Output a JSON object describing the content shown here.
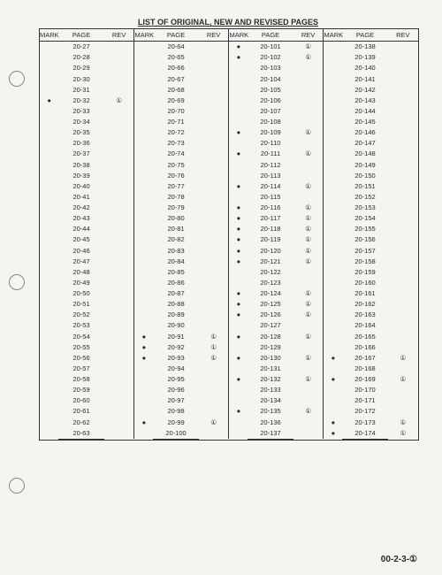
{
  "title": "LIST OF ORIGINAL, NEW AND REVISED PAGES",
  "footer": "00-2-3-①",
  "headers": {
    "mark": "MARK",
    "page": "PAGE",
    "rev": "REV"
  },
  "sections": [
    [
      {
        "m": "",
        "p": "20-27",
        "r": ""
      },
      {
        "m": "",
        "p": "20-28",
        "r": ""
      },
      {
        "m": "",
        "p": "20-29",
        "r": ""
      },
      {
        "m": "",
        "p": "20-30",
        "r": ""
      },
      {
        "m": "",
        "p": "20-31",
        "r": ""
      },
      {
        "m": "●",
        "p": "20-32",
        "r": "①"
      },
      {
        "m": "",
        "p": "20-33",
        "r": ""
      },
      {
        "m": "",
        "p": "20-34",
        "r": ""
      },
      {
        "m": "",
        "p": "20-35",
        "r": ""
      },
      {
        "m": "",
        "p": "20-36",
        "r": ""
      },
      {
        "m": "",
        "p": "20-37",
        "r": ""
      },
      {
        "m": "",
        "p": "20-38",
        "r": ""
      },
      {
        "m": "",
        "p": "20-39",
        "r": ""
      },
      {
        "m": "",
        "p": "20-40",
        "r": ""
      },
      {
        "m": "",
        "p": "20-41",
        "r": ""
      },
      {
        "m": "",
        "p": "20-42",
        "r": ""
      },
      {
        "m": "",
        "p": "20-43",
        "r": ""
      },
      {
        "m": "",
        "p": "20-44",
        "r": ""
      },
      {
        "m": "",
        "p": "20-45",
        "r": ""
      },
      {
        "m": "",
        "p": "20-46",
        "r": ""
      },
      {
        "m": "",
        "p": "20-47",
        "r": ""
      },
      {
        "m": "",
        "p": "20-48",
        "r": ""
      },
      {
        "m": "",
        "p": "20-49",
        "r": ""
      },
      {
        "m": "",
        "p": "20-50",
        "r": ""
      },
      {
        "m": "",
        "p": "20-51",
        "r": ""
      },
      {
        "m": "",
        "p": "20-52",
        "r": ""
      },
      {
        "m": "",
        "p": "20-53",
        "r": ""
      },
      {
        "m": "",
        "p": "20-54",
        "r": ""
      },
      {
        "m": "",
        "p": "20-55",
        "r": ""
      },
      {
        "m": "",
        "p": "20-56",
        "r": ""
      },
      {
        "m": "",
        "p": "20-57",
        "r": ""
      },
      {
        "m": "",
        "p": "20-58",
        "r": ""
      },
      {
        "m": "",
        "p": "20-59",
        "r": ""
      },
      {
        "m": "",
        "p": "20-60",
        "r": ""
      },
      {
        "m": "",
        "p": "20-61",
        "r": ""
      },
      {
        "m": "",
        "p": "20-62",
        "r": ""
      },
      {
        "m": "",
        "p": "20-63",
        "r": ""
      }
    ],
    [
      {
        "m": "",
        "p": "20-64",
        "r": ""
      },
      {
        "m": "",
        "p": "20-65",
        "r": ""
      },
      {
        "m": "",
        "p": "20-66",
        "r": ""
      },
      {
        "m": "",
        "p": "20-67",
        "r": ""
      },
      {
        "m": "",
        "p": "20-68",
        "r": ""
      },
      {
        "m": "",
        "p": "20-69",
        "r": ""
      },
      {
        "m": "",
        "p": "20-70",
        "r": ""
      },
      {
        "m": "",
        "p": "20-71",
        "r": ""
      },
      {
        "m": "",
        "p": "20-72",
        "r": ""
      },
      {
        "m": "",
        "p": "20-73",
        "r": ""
      },
      {
        "m": "",
        "p": "20-74",
        "r": ""
      },
      {
        "m": "",
        "p": "20-75",
        "r": ""
      },
      {
        "m": "",
        "p": "20-76",
        "r": ""
      },
      {
        "m": "",
        "p": "20-77",
        "r": ""
      },
      {
        "m": "",
        "p": "20-78",
        "r": ""
      },
      {
        "m": "",
        "p": "20-79",
        "r": ""
      },
      {
        "m": "",
        "p": "20-80",
        "r": ""
      },
      {
        "m": "",
        "p": "20-81",
        "r": ""
      },
      {
        "m": "",
        "p": "20-82",
        "r": ""
      },
      {
        "m": "",
        "p": "20-83",
        "r": ""
      },
      {
        "m": "",
        "p": "20-84",
        "r": ""
      },
      {
        "m": "",
        "p": "20-85",
        "r": ""
      },
      {
        "m": "",
        "p": "20-86",
        "r": ""
      },
      {
        "m": "",
        "p": "20-87",
        "r": ""
      },
      {
        "m": "",
        "p": "20-88",
        "r": ""
      },
      {
        "m": "",
        "p": "20-89",
        "r": ""
      },
      {
        "m": "",
        "p": "20-90",
        "r": ""
      },
      {
        "m": "●",
        "p": "20-91",
        "r": "①"
      },
      {
        "m": "●",
        "p": "20-92",
        "r": "①"
      },
      {
        "m": "●",
        "p": "20-93",
        "r": "①"
      },
      {
        "m": "",
        "p": "20-94",
        "r": ""
      },
      {
        "m": "",
        "p": "20-95",
        "r": ""
      },
      {
        "m": "",
        "p": "20-96",
        "r": ""
      },
      {
        "m": "",
        "p": "20-97",
        "r": ""
      },
      {
        "m": "",
        "p": "20-98",
        "r": ""
      },
      {
        "m": "●",
        "p": "20-99",
        "r": "①"
      },
      {
        "m": "",
        "p": "20-100",
        "r": ""
      }
    ],
    [
      {
        "m": "●",
        "p": "20-101",
        "r": "①"
      },
      {
        "m": "●",
        "p": "20-102",
        "r": "①"
      },
      {
        "m": "",
        "p": "20-103",
        "r": ""
      },
      {
        "m": "",
        "p": "20-104",
        "r": ""
      },
      {
        "m": "",
        "p": "20-105",
        "r": ""
      },
      {
        "m": "",
        "p": "20-106",
        "r": ""
      },
      {
        "m": "",
        "p": "20-107",
        "r": ""
      },
      {
        "m": "",
        "p": "20-108",
        "r": ""
      },
      {
        "m": "●",
        "p": "20-109",
        "r": "①"
      },
      {
        "m": "",
        "p": "20-110",
        "r": ""
      },
      {
        "m": "●",
        "p": "20-111",
        "r": "①"
      },
      {
        "m": "",
        "p": "20-112",
        "r": ""
      },
      {
        "m": "",
        "p": "20-113",
        "r": ""
      },
      {
        "m": "●",
        "p": "20-114",
        "r": "①"
      },
      {
        "m": "",
        "p": "20-115",
        "r": ""
      },
      {
        "m": "●",
        "p": "20-116",
        "r": "①"
      },
      {
        "m": "●",
        "p": "20-117",
        "r": "①"
      },
      {
        "m": "●",
        "p": "20-118",
        "r": "①"
      },
      {
        "m": "●",
        "p": "20-119",
        "r": "①"
      },
      {
        "m": "●",
        "p": "20-120",
        "r": "①"
      },
      {
        "m": "●",
        "p": "20-121",
        "r": "①"
      },
      {
        "m": "",
        "p": "20-122",
        "r": ""
      },
      {
        "m": "",
        "p": "20-123",
        "r": ""
      },
      {
        "m": "●",
        "p": "20-124",
        "r": "①"
      },
      {
        "m": "●",
        "p": "20-125",
        "r": "①"
      },
      {
        "m": "●",
        "p": "20-126",
        "r": "①"
      },
      {
        "m": "",
        "p": "20-127",
        "r": ""
      },
      {
        "m": "●",
        "p": "20-128",
        "r": "①"
      },
      {
        "m": "",
        "p": "20-129",
        "r": ""
      },
      {
        "m": "●",
        "p": "20-130",
        "r": "①"
      },
      {
        "m": "",
        "p": "20-131",
        "r": ""
      },
      {
        "m": "●",
        "p": "20-132",
        "r": "①"
      },
      {
        "m": "",
        "p": "20-133",
        "r": ""
      },
      {
        "m": "",
        "p": "20-134",
        "r": ""
      },
      {
        "m": "●",
        "p": "20-135",
        "r": "①"
      },
      {
        "m": "",
        "p": "20-136",
        "r": ""
      },
      {
        "m": "",
        "p": "20-137",
        "r": ""
      }
    ],
    [
      {
        "m": "",
        "p": "20-138",
        "r": ""
      },
      {
        "m": "",
        "p": "20-139",
        "r": ""
      },
      {
        "m": "",
        "p": "20-140",
        "r": ""
      },
      {
        "m": "",
        "p": "20-141",
        "r": ""
      },
      {
        "m": "",
        "p": "20-142",
        "r": ""
      },
      {
        "m": "",
        "p": "20-143",
        "r": ""
      },
      {
        "m": "",
        "p": "20-144",
        "r": ""
      },
      {
        "m": "",
        "p": "20-145",
        "r": ""
      },
      {
        "m": "",
        "p": "20-146",
        "r": ""
      },
      {
        "m": "",
        "p": "20-147",
        "r": ""
      },
      {
        "m": "",
        "p": "20-148",
        "r": ""
      },
      {
        "m": "",
        "p": "20-149",
        "r": ""
      },
      {
        "m": "",
        "p": "20-150",
        "r": ""
      },
      {
        "m": "",
        "p": "20-151",
        "r": ""
      },
      {
        "m": "",
        "p": "20-152",
        "r": ""
      },
      {
        "m": "",
        "p": "20-153",
        "r": ""
      },
      {
        "m": "",
        "p": "20-154",
        "r": ""
      },
      {
        "m": "",
        "p": "20-155",
        "r": ""
      },
      {
        "m": "",
        "p": "20-156",
        "r": ""
      },
      {
        "m": "",
        "p": "20-157",
        "r": ""
      },
      {
        "m": "",
        "p": "20-158",
        "r": ""
      },
      {
        "m": "",
        "p": "20-159",
        "r": ""
      },
      {
        "m": "",
        "p": "20-160",
        "r": ""
      },
      {
        "m": "",
        "p": "20-161",
        "r": ""
      },
      {
        "m": "",
        "p": "20-162",
        "r": ""
      },
      {
        "m": "",
        "p": "20-163",
        "r": ""
      },
      {
        "m": "",
        "p": "20-164",
        "r": ""
      },
      {
        "m": "",
        "p": "20-165",
        "r": ""
      },
      {
        "m": "",
        "p": "20-166",
        "r": ""
      },
      {
        "m": "●",
        "p": "20-167",
        "r": "①"
      },
      {
        "m": "",
        "p": "20-168",
        "r": ""
      },
      {
        "m": "●",
        "p": "20-169",
        "r": "①"
      },
      {
        "m": "",
        "p": "20-170",
        "r": ""
      },
      {
        "m": "",
        "p": "20-171",
        "r": ""
      },
      {
        "m": "",
        "p": "20-172",
        "r": ""
      },
      {
        "m": "●",
        "p": "20-173",
        "r": "①"
      },
      {
        "m": "●",
        "p": "20-174",
        "r": "①"
      }
    ]
  ],
  "colors": {
    "page_bg": "#f4f4f0",
    "text": "#2a2a2a",
    "border": "#333333"
  },
  "layout": {
    "row_count": 37,
    "section_count": 4
  }
}
